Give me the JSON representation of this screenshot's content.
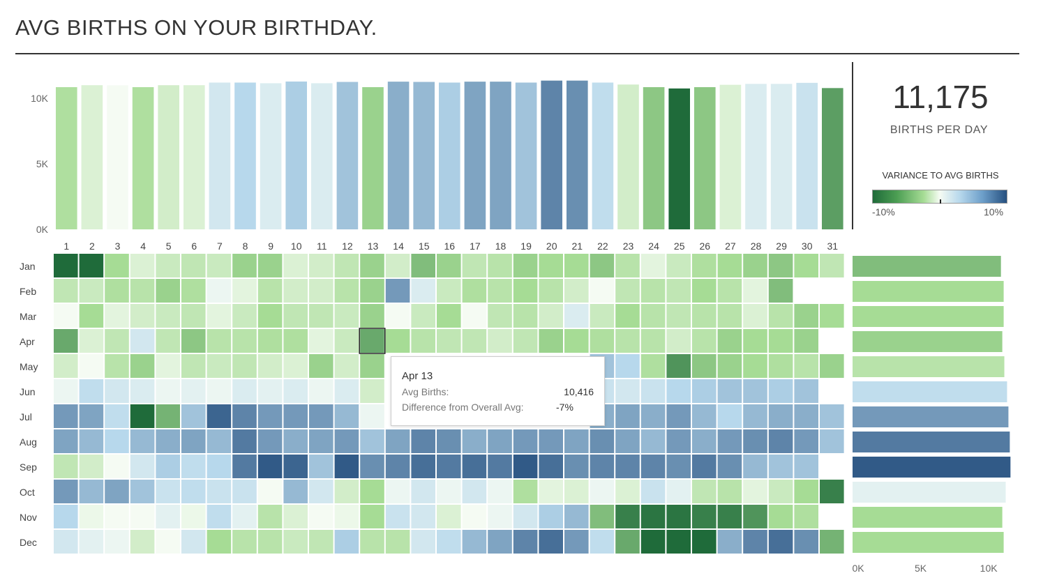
{
  "title": "AVG BIRTHS ON YOUR BIRTHDAY.",
  "kpi": {
    "value": "11,175",
    "label": "BIRTHS PER DAY"
  },
  "legend": {
    "title": "VARIANCE TO AVG BIRTHS",
    "min_label": "-10%",
    "max_label": "10%"
  },
  "tooltip": {
    "title": "Apr 13",
    "avg_births_label": "Avg Births:",
    "avg_births_value": "10,416",
    "difference_label": "Difference from Overall Avg:",
    "difference_value": "-7%"
  },
  "colors": {
    "green_dark": "#1f6b3a",
    "green_light": "#a6dc95",
    "neutral": "#f5fbf3",
    "blue_light": "#b7d8ec",
    "blue_dark": "#26507f"
  },
  "chart_data": [
    {
      "type": "bar",
      "title": "",
      "categories": [
        "1",
        "2",
        "3",
        "4",
        "5",
        "6",
        "7",
        "8",
        "9",
        "10",
        "11",
        "12",
        "13",
        "14",
        "15",
        "16",
        "17",
        "18",
        "19",
        "20",
        "21",
        "22",
        "23",
        "24",
        "25",
        "26",
        "27",
        "28",
        "29",
        "30",
        "31"
      ],
      "values": [
        10850,
        11000,
        10990,
        10850,
        11000,
        11000,
        11200,
        11200,
        11150,
        11280,
        11150,
        11250,
        10850,
        11270,
        11250,
        11200,
        11270,
        11270,
        11200,
        11350,
        11350,
        11200,
        11050,
        10850,
        10750,
        10850,
        11030,
        11100,
        11100,
        11180,
        10780
      ],
      "variance": [
        -0.04,
        -0.015,
        0.0,
        -0.04,
        -0.02,
        -0.015,
        0.02,
        0.035,
        0.015,
        0.04,
        0.015,
        0.045,
        -0.05,
        0.055,
        0.05,
        0.04,
        0.06,
        0.06,
        0.045,
        0.075,
        0.07,
        0.03,
        -0.02,
        -0.055,
        -0.1,
        -0.055,
        -0.015,
        0.015,
        0.015,
        0.025,
        -0.075
      ],
      "yticks": [
        "10K",
        "5K",
        "0K"
      ],
      "ylim": [
        0,
        12500
      ]
    },
    {
      "type": "heatmap",
      "rows": [
        "Jan",
        "Feb",
        "Mar",
        "Apr",
        "May",
        "Jun",
        "Jul",
        "Aug",
        "Sep",
        "Oct",
        "Nov",
        "Dec"
      ],
      "columns": [
        "1",
        "2",
        "3",
        "4",
        "5",
        "6",
        "7",
        "8",
        "9",
        "10",
        "11",
        "12",
        "13",
        "14",
        "15",
        "16",
        "17",
        "18",
        "19",
        "20",
        "21",
        "22",
        "23",
        "24",
        "25",
        "26",
        "27",
        "28",
        "29",
        "30",
        "31"
      ],
      "variance": [
        [
          -0.1,
          -0.1,
          -0.045,
          -0.015,
          -0.025,
          -0.03,
          -0.025,
          -0.05,
          -0.05,
          -0.015,
          -0.02,
          -0.03,
          -0.05,
          -0.02,
          -0.06,
          -0.05,
          -0.03,
          -0.035,
          -0.05,
          -0.045,
          -0.045,
          -0.055,
          -0.035,
          -0.01,
          -0.025,
          -0.04,
          -0.045,
          -0.05,
          -0.055,
          -0.045,
          -0.03
        ],
        [
          -0.03,
          -0.025,
          -0.04,
          -0.035,
          -0.05,
          -0.04,
          0.005,
          -0.01,
          -0.035,
          -0.02,
          -0.02,
          -0.035,
          -0.05,
          0.065,
          0.015,
          -0.025,
          -0.04,
          -0.035,
          -0.045,
          -0.035,
          -0.02,
          0.0,
          -0.03,
          -0.035,
          -0.03,
          -0.045,
          -0.035,
          -0.01,
          -0.06,
          null,
          null
        ],
        [
          0.0,
          -0.045,
          -0.01,
          -0.02,
          -0.025,
          -0.03,
          -0.01,
          -0.025,
          -0.045,
          -0.03,
          -0.03,
          -0.025,
          -0.05,
          0.0,
          -0.025,
          -0.045,
          0.0,
          -0.03,
          -0.035,
          -0.02,
          0.015,
          -0.025,
          -0.045,
          -0.035,
          -0.03,
          -0.035,
          -0.035,
          -0.015,
          -0.035,
          -0.05,
          -0.045
        ],
        [
          -0.07,
          -0.015,
          -0.03,
          0.02,
          -0.03,
          -0.055,
          -0.035,
          -0.035,
          -0.04,
          -0.04,
          -0.01,
          -0.025,
          -0.07,
          -0.045,
          -0.035,
          -0.03,
          -0.03,
          -0.02,
          -0.03,
          -0.05,
          -0.045,
          -0.04,
          -0.035,
          -0.035,
          -0.02,
          -0.035,
          -0.05,
          -0.045,
          -0.045,
          -0.05,
          null
        ],
        [
          -0.02,
          0.0,
          -0.035,
          -0.05,
          -0.01,
          -0.03,
          -0.025,
          -0.03,
          -0.02,
          -0.015,
          -0.05,
          -0.02,
          -0.05,
          null,
          null,
          null,
          null,
          null,
          null,
          null,
          null,
          0.045,
          0.035,
          -0.04,
          -0.08,
          -0.055,
          -0.05,
          -0.045,
          -0.04,
          -0.035,
          -0.05
        ],
        [
          0.005,
          0.03,
          0.02,
          0.015,
          0.005,
          0.01,
          0.005,
          0.015,
          0.01,
          0.015,
          0.005,
          0.015,
          -0.02,
          null,
          null,
          null,
          null,
          null,
          null,
          null,
          null,
          0.025,
          0.02,
          0.025,
          0.035,
          0.04,
          0.045,
          0.045,
          0.04,
          0.045,
          null
        ],
        [
          0.065,
          0.06,
          0.03,
          -0.1,
          -0.065,
          0.045,
          0.09,
          0.075,
          0.065,
          0.065,
          0.065,
          0.05,
          0.005,
          null,
          null,
          null,
          null,
          null,
          null,
          null,
          null,
          0.055,
          0.06,
          0.055,
          0.065,
          0.05,
          0.035,
          0.05,
          0.055,
          0.055,
          0.045
        ],
        [
          0.06,
          0.05,
          0.035,
          0.05,
          0.055,
          0.06,
          0.05,
          0.08,
          0.065,
          0.055,
          0.06,
          0.065,
          0.045,
          0.06,
          0.075,
          0.07,
          0.055,
          0.06,
          0.065,
          0.065,
          0.06,
          0.07,
          0.06,
          0.05,
          0.065,
          0.055,
          0.065,
          0.07,
          0.075,
          0.065,
          0.045
        ],
        [
          -0.03,
          -0.02,
          0.0,
          0.02,
          0.04,
          0.03,
          0.035,
          0.08,
          0.095,
          0.09,
          0.045,
          0.095,
          0.07,
          0.075,
          0.085,
          0.08,
          0.085,
          0.08,
          0.095,
          0.085,
          0.07,
          0.075,
          0.075,
          0.075,
          0.07,
          0.08,
          0.07,
          0.05,
          0.045,
          0.045,
          null
        ],
        [
          0.065,
          0.05,
          0.06,
          0.045,
          0.025,
          0.03,
          0.025,
          0.025,
          0.0,
          0.05,
          0.02,
          -0.02,
          -0.045,
          0.005,
          0.02,
          0.005,
          0.02,
          0.005,
          -0.04,
          -0.01,
          -0.015,
          0.005,
          -0.015,
          0.025,
          0.01,
          -0.03,
          -0.035,
          -0.01,
          -0.025,
          -0.045,
          -0.09
        ],
        [
          0.035,
          -0.005,
          0.0,
          0.0,
          0.01,
          -0.005,
          0.03,
          0.01,
          -0.035,
          -0.015,
          0.0,
          -0.005,
          -0.045,
          0.025,
          0.02,
          -0.015,
          0.0,
          0.005,
          0.02,
          0.04,
          0.05,
          -0.06,
          -0.09,
          -0.095,
          -0.095,
          -0.09,
          -0.09,
          -0.08,
          -0.045,
          -0.04,
          null
        ],
        [
          0.02,
          0.01,
          0.005,
          -0.02,
          0.0,
          0.02,
          -0.045,
          -0.035,
          -0.035,
          -0.025,
          -0.03,
          0.04,
          -0.035,
          -0.035,
          0.02,
          0.03,
          0.05,
          0.06,
          0.075,
          0.085,
          0.065,
          0.03,
          -0.07,
          -0.1,
          -0.1,
          -0.1,
          0.055,
          0.075,
          0.085,
          0.07,
          -0.065
        ]
      ],
      "highlighted_cell": {
        "row": "Apr",
        "column": "13"
      }
    },
    {
      "type": "bar",
      "orientation": "horizontal",
      "categories": [
        "Jan",
        "Feb",
        "Mar",
        "Apr",
        "May",
        "Jun",
        "Jul",
        "Aug",
        "Sep",
        "Oct",
        "Nov",
        "Dec"
      ],
      "values": [
        10900,
        11100,
        11100,
        11000,
        11150,
        11350,
        11450,
        11550,
        11600,
        11250,
        11000,
        11100
      ],
      "variance": [
        -0.06,
        -0.045,
        -0.045,
        -0.05,
        -0.035,
        0.03,
        0.065,
        0.08,
        0.095,
        0.01,
        -0.045,
        -0.045
      ],
      "xticks": [
        "0K",
        "5K",
        "10K"
      ],
      "xlim": [
        0,
        12300
      ]
    }
  ]
}
